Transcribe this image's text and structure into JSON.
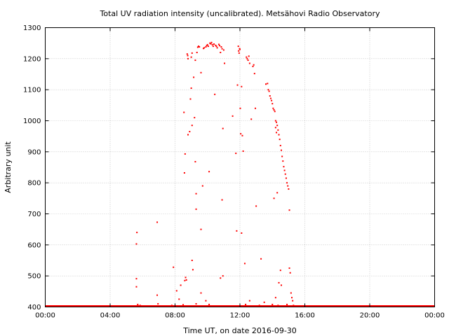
{
  "chart_data": {
    "type": "scatter",
    "title": "Total UV radiation intensity (uncalibrated). Metsähovi Radio Observatory",
    "xlabel": "Time UT, on date 2016-09-30",
    "ylabel": "Arbitrary unit",
    "x_unit": "hours UT",
    "xlim": [
      0,
      24
    ],
    "ylim": [
      400,
      1300
    ],
    "xticks": [
      {
        "value": 0,
        "label": "00:00"
      },
      {
        "value": 4,
        "label": "04:00"
      },
      {
        "value": 8,
        "label": "08:00"
      },
      {
        "value": 12,
        "label": "12:00"
      },
      {
        "value": 16,
        "label": "16:00"
      },
      {
        "value": 20,
        "label": "20:00"
      },
      {
        "value": 24,
        "label": "00:00"
      }
    ],
    "yticks": [
      400,
      500,
      600,
      700,
      800,
      900,
      1000,
      1100,
      1200,
      1300
    ],
    "grid": true,
    "grid_style": "dotted",
    "marker_color": "#ff0000",
    "baseline": {
      "value": 400,
      "x_range": [
        0,
        24
      ],
      "color": "#ff0000"
    },
    "points": [
      [
        5.65,
        640
      ],
      [
        5.62,
        603
      ],
      [
        5.62,
        491
      ],
      [
        5.62,
        465
      ],
      [
        5.7,
        408
      ],
      [
        5.85,
        405
      ],
      [
        6.9,
        673
      ],
      [
        6.9,
        438
      ],
      [
        6.95,
        410
      ],
      [
        7.4,
        402
      ],
      [
        7.8,
        405
      ],
      [
        7.9,
        528
      ],
      [
        8.1,
        452
      ],
      [
        8.25,
        425
      ],
      [
        8.35,
        470
      ],
      [
        8.5,
        407
      ],
      [
        8.55,
        1027
      ],
      [
        8.58,
        832
      ],
      [
        8.62,
        893
      ],
      [
        8.6,
        485
      ],
      [
        8.65,
        495
      ],
      [
        8.7,
        487
      ],
      [
        8.75,
        1215
      ],
      [
        8.78,
        1210
      ],
      [
        8.8,
        1200
      ],
      [
        8.8,
        955
      ],
      [
        8.9,
        965
      ],
      [
        8.95,
        1070
      ],
      [
        9.0,
        1105
      ],
      [
        9.0,
        1205
      ],
      [
        9.05,
        1218
      ],
      [
        9.05,
        985
      ],
      [
        9.05,
        550
      ],
      [
        9.1,
        520
      ],
      [
        9.15,
        1140
      ],
      [
        9.2,
        1010
      ],
      [
        9.25,
        1195
      ],
      [
        9.25,
        868
      ],
      [
        9.3,
        765
      ],
      [
        9.3,
        715
      ],
      [
        9.35,
        1220
      ],
      [
        9.4,
        1237
      ],
      [
        9.45,
        1240
      ],
      [
        9.5,
        1238
      ],
      [
        9.6,
        1155
      ],
      [
        9.6,
        650
      ],
      [
        9.7,
        790
      ],
      [
        9.75,
        1233
      ],
      [
        9.8,
        1235
      ],
      [
        9.9,
        1238
      ],
      [
        9.95,
        1242
      ],
      [
        10.0,
        1245
      ],
      [
        10.05,
        1240
      ],
      [
        10.1,
        836
      ],
      [
        10.15,
        1250
      ],
      [
        10.2,
        1248
      ],
      [
        10.25,
        1252
      ],
      [
        10.3,
        1245
      ],
      [
        10.35,
        1240
      ],
      [
        10.4,
        1247
      ],
      [
        10.45,
        1085
      ],
      [
        10.5,
        1243
      ],
      [
        10.55,
        1240
      ],
      [
        10.6,
        1235
      ],
      [
        10.7,
        1246
      ],
      [
        10.75,
        1242
      ],
      [
        10.8,
        1220
      ],
      [
        10.85,
        1238
      ],
      [
        10.9,
        1232
      ],
      [
        10.95,
        975
      ],
      [
        11.0,
        1228
      ],
      [
        11.05,
        1185
      ],
      [
        10.9,
        745
      ],
      [
        10.95,
        500
      ],
      [
        10.8,
        493
      ],
      [
        9.0,
        402
      ],
      [
        9.3,
        410
      ],
      [
        9.6,
        445
      ],
      [
        9.9,
        420
      ],
      [
        10.1,
        408
      ],
      [
        10.4,
        402
      ],
      [
        11.2,
        402
      ],
      [
        11.5,
        403
      ],
      [
        11.55,
        1015
      ],
      [
        11.75,
        895
      ],
      [
        11.8,
        645
      ],
      [
        11.85,
        1115
      ],
      [
        11.9,
        1240
      ],
      [
        11.92,
        1225
      ],
      [
        11.95,
        1218
      ],
      [
        11.98,
        1232
      ],
      [
        12.0,
        1230
      ],
      [
        12.02,
        1040
      ],
      [
        12.05,
        958
      ],
      [
        12.1,
        1110
      ],
      [
        12.1,
        638
      ],
      [
        12.15,
        952
      ],
      [
        12.2,
        902
      ],
      [
        12.3,
        540
      ],
      [
        12.35,
        408
      ],
      [
        12.4,
        1205
      ],
      [
        12.45,
        1200
      ],
      [
        12.5,
        1195
      ],
      [
        12.55,
        1208
      ],
      [
        12.6,
        1185
      ],
      [
        12.6,
        420
      ],
      [
        12.7,
        1005
      ],
      [
        12.8,
        1175
      ],
      [
        12.85,
        1180
      ],
      [
        12.9,
        1152
      ],
      [
        12.95,
        1040
      ],
      [
        13.0,
        725
      ],
      [
        13.2,
        405
      ],
      [
        13.3,
        555
      ],
      [
        13.5,
        415
      ],
      [
        13.6,
        1118
      ],
      [
        13.7,
        1120
      ],
      [
        13.75,
        1100
      ],
      [
        13.8,
        1095
      ],
      [
        13.85,
        1080
      ],
      [
        13.9,
        1072
      ],
      [
        13.95,
        1065
      ],
      [
        14.0,
        1055
      ],
      [
        14.05,
        1040
      ],
      [
        14.1,
        1035
      ],
      [
        14.15,
        1030
      ],
      [
        14.2,
        1000
      ],
      [
        14.25,
        995
      ],
      [
        14.3,
        985
      ],
      [
        14.35,
        970
      ],
      [
        14.4,
        955
      ],
      [
        14.45,
        940
      ],
      [
        14.5,
        920
      ],
      [
        14.55,
        905
      ],
      [
        14.6,
        885
      ],
      [
        14.65,
        870
      ],
      [
        14.7,
        852
      ],
      [
        14.75,
        840
      ],
      [
        14.8,
        828
      ],
      [
        14.85,
        815
      ],
      [
        14.9,
        800
      ],
      [
        14.95,
        790
      ],
      [
        15.0,
        780
      ],
      [
        15.05,
        712
      ],
      [
        14.2,
        978
      ],
      [
        14.25,
        962
      ],
      [
        14.1,
        750
      ],
      [
        14.3,
        768
      ],
      [
        14.5,
        518
      ],
      [
        14.4,
        478
      ],
      [
        14.55,
        470
      ],
      [
        14.6,
        402
      ],
      [
        14.9,
        408
      ],
      [
        15.05,
        525
      ],
      [
        15.1,
        510
      ],
      [
        15.15,
        445
      ],
      [
        15.2,
        430
      ],
      [
        15.25,
        420
      ],
      [
        15.3,
        405
      ],
      [
        15.35,
        402
      ],
      [
        14.2,
        430
      ],
      [
        14.0,
        408
      ],
      [
        14.35,
        405
      ]
    ]
  }
}
